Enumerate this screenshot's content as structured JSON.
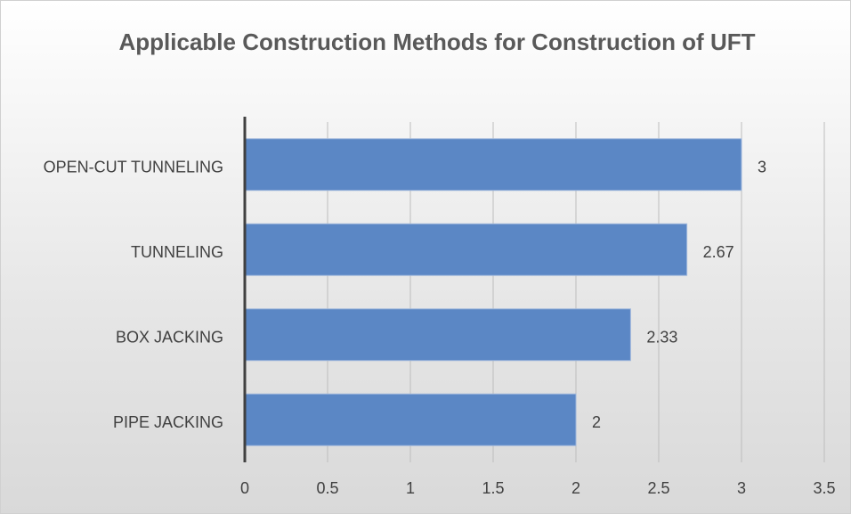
{
  "chart_data": {
    "type": "barh",
    "title": "Applicable Construction Methods for Construction of UFT",
    "categories": [
      "OPEN-CUT TUNNELING",
      "TUNNELING",
      "BOX JACKING",
      "PIPE JACKING"
    ],
    "values": [
      3,
      2.67,
      2.33,
      2
    ],
    "color": "#5b87c5",
    "xlim": [
      0,
      3.5
    ],
    "xticks": [
      0,
      0.5,
      1,
      1.5,
      2,
      2.5,
      3,
      3.5
    ],
    "grid": true,
    "data_labels": true
  }
}
